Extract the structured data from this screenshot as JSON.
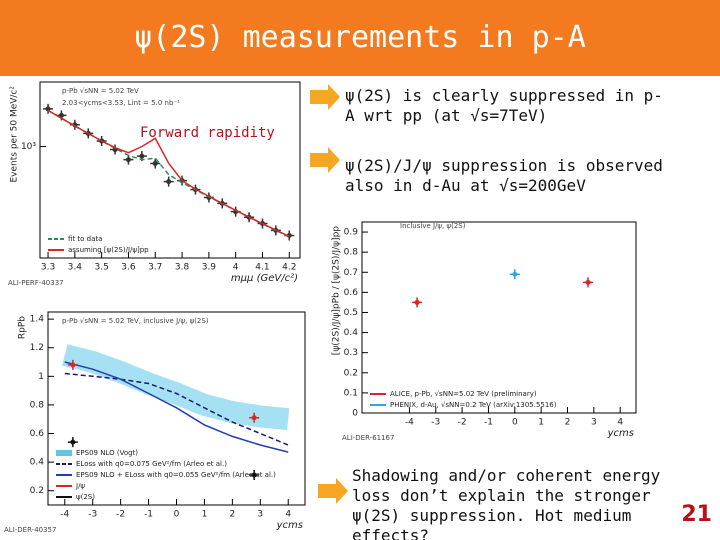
{
  "header": {
    "title": "ψ(2S) measurements in p-A"
  },
  "bullets": [
    "ψ(2S) is clearly suppressed in p-A wrt pp (at √s=7TeV)",
    "ψ(2S)/J/ψ suppression is observed also in d-Au at √s=200GeV",
    "Shadowing and/or coherent energy loss don’t explain the stronger ψ(2S) suppression. Hot medium effects?"
  ],
  "page_number": "21",
  "chart_data": [
    {
      "type": "scatter",
      "log_y": true,
      "xlabel": "mμμ (GeV/c²)",
      "ylabel": "Events per 50 MeV/c²",
      "annotations": [
        "p-Pb √sNN = 5.02 TeV",
        "2.03<ycms<3.53, Lint = 5.0 nb⁻¹",
        "Forward rapidity",
        "ALI-PERF-40337"
      ],
      "xlim": [
        3.27,
        4.24
      ],
      "ylim": [
        150,
        3000
      ],
      "xticks": [
        3.3,
        3.4,
        3.5,
        3.6,
        3.7,
        3.8,
        3.9,
        4,
        4.1,
        4.2
      ],
      "yticks": [
        {
          "value": 1000,
          "label": "10³"
        }
      ],
      "legend": "lower-left",
      "series": [
        {
          "style": "markers",
          "color": "#333333",
          "x": [
            3.3,
            3.35,
            3.4,
            3.45,
            3.5,
            3.55,
            3.6,
            3.65,
            3.7,
            3.75,
            3.8,
            3.85,
            3.9,
            3.95,
            4.0,
            4.05,
            4.1,
            4.15,
            4.2
          ],
          "values": [
            1900,
            1700,
            1450,
            1250,
            1100,
            950,
            800,
            850,
            750,
            550,
            560,
            480,
            420,
            380,
            330,
            300,
            270,
            240,
            220
          ]
        },
        {
          "name": "fit to data",
          "style": "dashed",
          "color": "#2e8b57",
          "x": [
            3.3,
            3.35,
            3.4,
            3.45,
            3.5,
            3.55,
            3.6,
            3.65,
            3.7,
            3.75,
            3.8,
            3.85,
            3.9,
            3.95,
            4.0,
            4.05,
            4.1,
            4.15,
            4.2
          ],
          "values": [
            1850,
            1620,
            1420,
            1250,
            1100,
            970,
            860,
            800,
            820,
            620,
            540,
            480,
            425,
            378,
            337,
            300,
            268,
            240,
            215
          ]
        },
        {
          "name": "assuming [ψ(2S)/J/ψ]pp",
          "style": "line",
          "color": "#d62728",
          "x": [
            3.3,
            3.35,
            3.4,
            3.45,
            3.5,
            3.55,
            3.6,
            3.65,
            3.7,
            3.75,
            3.8,
            3.85,
            3.9,
            3.95,
            4.0,
            4.05,
            4.1,
            4.15,
            4.2
          ],
          "values": [
            1850,
            1620,
            1420,
            1250,
            1100,
            980,
            900,
            1000,
            1150,
            750,
            560,
            485,
            428,
            380,
            338,
            301,
            269,
            241,
            216
          ]
        }
      ]
    },
    {
      "type": "scatter",
      "xlabel": "ycms",
      "ylabel": "RpPb",
      "annotations": [
        "p-Pb √sNN = 5.02 TeV, inclusive J/ψ, ψ(2S)",
        "ALI-DER-40357"
      ],
      "xlim": [
        -4.6,
        4.6
      ],
      "ylim": [
        0.1,
        1.45
      ],
      "xticks": [
        -4,
        -3,
        -2,
        -1,
        0,
        1,
        2,
        3,
        4
      ],
      "yticks": [
        0.2,
        0.4,
        0.6,
        0.8,
        1,
        1.2,
        1.4
      ],
      "legend": "lower-left",
      "series": [
        {
          "name": "EPS09 NLO (Vogt)",
          "style": "band",
          "color": "#5bc8e8",
          "x": [
            -4,
            -3,
            -2,
            -1,
            0,
            1,
            2,
            3,
            4
          ],
          "values": [
            1.15,
            1.1,
            1.03,
            0.95,
            0.88,
            0.8,
            0.75,
            0.72,
            0.7
          ]
        },
        {
          "name": "ELoss with q0=0.075 GeV²/fm (Arleo et al.)",
          "style": "dashed",
          "color": "#1a1a6e",
          "x": [
            -4,
            -3,
            -2,
            -1,
            0,
            1,
            2,
            3,
            4
          ],
          "values": [
            1.02,
            1.0,
            0.98,
            0.95,
            0.88,
            0.78,
            0.68,
            0.6,
            0.52
          ]
        },
        {
          "name": "EPS09 NLO + ELoss with q0=0.055 GeV²/fm (Arleo et al.)",
          "style": "line",
          "color": "#1f3fb0",
          "x": [
            -4,
            -3,
            -2,
            -1,
            0,
            1,
            2,
            3,
            4
          ],
          "values": [
            1.1,
            1.05,
            0.98,
            0.88,
            0.78,
            0.66,
            0.58,
            0.52,
            0.47
          ]
        },
        {
          "name": "J/ψ",
          "style": "markers",
          "color": "#d62728",
          "x": [
            -3.71,
            2.78
          ],
          "values": [
            1.08,
            0.71
          ]
        },
        {
          "name": "ψ(2S)",
          "style": "markers",
          "color": "#111111",
          "x": [
            -3.71,
            2.78
          ],
          "values": [
            0.54,
            0.31
          ]
        }
      ]
    },
    {
      "type": "scatter",
      "xlabel": "ycms",
      "ylabel": "[ψ(2S)/J/ψ]pPb / [ψ(2S)/J/ψ]pp",
      "annotations": [
        "Inclusive J/ψ, ψ(2S)",
        "ALI-DER-61167"
      ],
      "xlim": [
        -5.8,
        4.6
      ],
      "ylim": [
        0,
        0.95
      ],
      "xticks": [
        -4,
        -3,
        -2,
        -1,
        0,
        1,
        2,
        3,
        4
      ],
      "yticks": [
        0,
        0.1,
        0.2,
        0.3,
        0.4,
        0.5,
        0.6,
        0.7,
        0.8,
        0.9
      ],
      "legend": "lower-left",
      "series": [
        {
          "name": "ALICE, p-Pb, √sNN=5.02 TeV (preliminary)",
          "style": "markers",
          "color": "#d62728",
          "x": [
            -3.71,
            2.78
          ],
          "values": [
            0.55,
            0.65
          ]
        },
        {
          "name": "PHENIX, d-Au, √sNN=0.2 TeV (arXiv:1305.5516)",
          "style": "markers",
          "color": "#29a9e0",
          "x": [
            0
          ],
          "values": [
            0.69
          ]
        }
      ]
    }
  ]
}
